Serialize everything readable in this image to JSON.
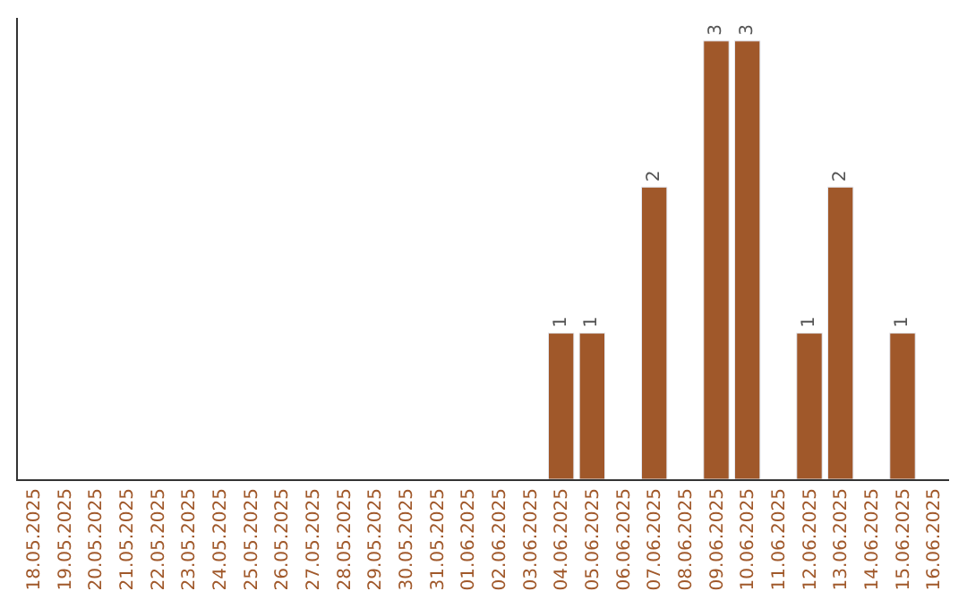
{
  "chart_data": {
    "type": "bar",
    "categories": [
      "18.05.2025",
      "19.05.2025",
      "20.05.2025",
      "21.05.2025",
      "22.05.2025",
      "23.05.2025",
      "24.05.2025",
      "25.05.2025",
      "26.05.2025",
      "27.05.2025",
      "28.05.2025",
      "29.05.2025",
      "30.05.2025",
      "31.05.2025",
      "01.06.2025",
      "02.06.2025",
      "03.06.2025",
      "04.06.2025",
      "05.06.2025",
      "06.06.2025",
      "07.06.2025",
      "08.06.2025",
      "09.06.2025",
      "10.06.2025",
      "11.06.2025",
      "12.06.2025",
      "13.06.2025",
      "14.06.2025",
      "15.06.2025",
      "16.06.2025"
    ],
    "values": [
      null,
      null,
      null,
      null,
      null,
      null,
      null,
      null,
      null,
      null,
      null,
      null,
      null,
      null,
      null,
      null,
      null,
      1,
      1,
      null,
      2,
      null,
      3,
      3,
      null,
      1,
      2,
      null,
      1,
      null
    ],
    "data_labels": true,
    "color": "#a0582a"
  }
}
